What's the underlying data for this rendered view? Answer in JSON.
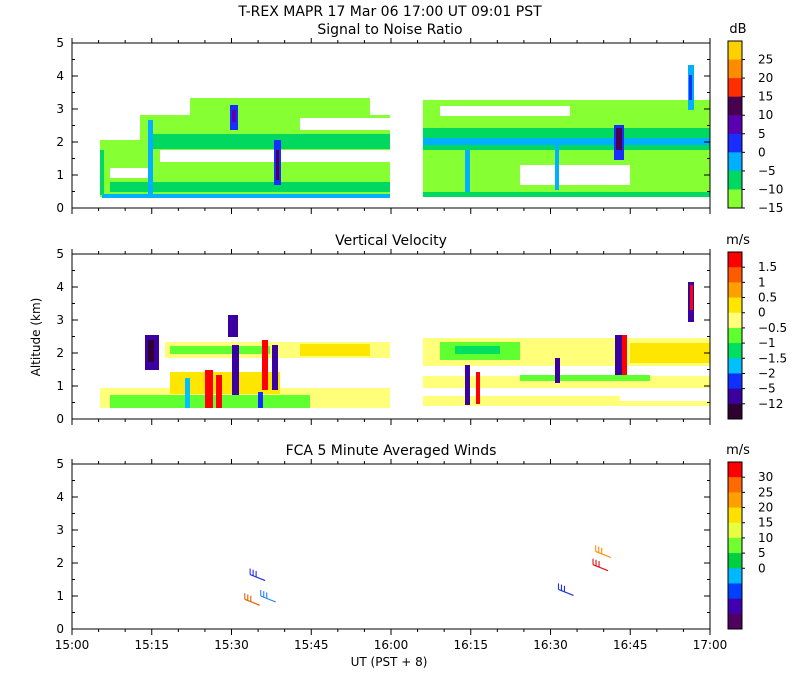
{
  "header": {
    "title": "T-REX   MAPR 17 Mar 06   17:00 UT   09:01   PST"
  },
  "colors": {
    "white": "#ffffff",
    "axis": "#000000"
  },
  "x_axis": {
    "ticks": [
      "15:00",
      "15:15",
      "15:30",
      "15:45",
      "16:00",
      "16:15",
      "16:30",
      "16:45",
      "17:00"
    ],
    "label": "UT  (PST + 8)"
  },
  "chart_data": [
    {
      "type": "heatmap",
      "title": "Signal to Noise Ratio",
      "xlabel": "UT  (PST + 8)",
      "ylabel": "",
      "xlim": [
        0,
        120
      ],
      "ylim": [
        0,
        5
      ],
      "yticks": [
        "0",
        "1",
        "2",
        "3",
        "4",
        "5"
      ],
      "colorbar_unit": "dB",
      "colorbar_labels": [
        "25",
        "20",
        "15",
        "10",
        "5",
        "0",
        "−5",
        "−10",
        "−15"
      ],
      "colorbar_colors": [
        "#ffd000",
        "#ff8c00",
        "#ff2d00",
        "#4a0050",
        "#5a00b0",
        "#1a2dff",
        "#00b0ff",
        "#00d860",
        "#86ff33"
      ],
      "data_gap": [
        60,
        66
      ]
    },
    {
      "type": "heatmap",
      "title": "Vertical Velocity",
      "xlabel": "UT  (PST + 8)",
      "ylabel": "Altitude (km)",
      "xlim": [
        0,
        120
      ],
      "ylim": [
        0,
        5
      ],
      "yticks": [
        "0",
        "1",
        "2",
        "3",
        "4",
        "5"
      ],
      "colorbar_unit": "m/s",
      "colorbar_labels": [
        "1.5",
        "1",
        "0.5",
        "0",
        "−0.5",
        "−1",
        "−1.5",
        "−2",
        "−5",
        "−12"
      ],
      "colorbar_colors": [
        "#ff0000",
        "#ff5a00",
        "#ffa000",
        "#ffe600",
        "#ffff7a",
        "#60ff30",
        "#00e060",
        "#00c0ff",
        "#1030ff",
        "#3a00a0",
        "#300030"
      ],
      "data_gap": [
        60,
        66
      ]
    },
    {
      "type": "scatter",
      "title": "FCA 5 Minute Averaged Winds",
      "xlabel": "UT  (PST + 8)",
      "ylabel": "",
      "xlim": [
        0,
        120
      ],
      "ylim": [
        0,
        5
      ],
      "yticks": [
        "0",
        "1",
        "2",
        "3",
        "4",
        "5"
      ],
      "colorbar_unit": "m/s",
      "colorbar_labels": [
        "30",
        "25",
        "20",
        "15",
        "10",
        "5",
        "0"
      ],
      "colorbar_colors": [
        "#ff0000",
        "#ff6a00",
        "#ffa000",
        "#ffe000",
        "#e6ff40",
        "#70ff30",
        "#00d040",
        "#00b8ff",
        "#0040ff",
        "#4000b0",
        "#500060"
      ],
      "barbs": [
        {
          "t": 33.5,
          "alt": 1.65,
          "color": "#2030e0"
        },
        {
          "t": 35.5,
          "alt": 1.0,
          "color": "#2080ff"
        },
        {
          "t": 32.5,
          "alt": 0.9,
          "color": "#e06000"
        },
        {
          "t": 91.5,
          "alt": 1.2,
          "color": "#2030e0"
        },
        {
          "t": 98.5,
          "alt": 2.35,
          "color": "#ff9000"
        },
        {
          "t": 98.0,
          "alt": 1.95,
          "color": "#e01010"
        }
      ]
    }
  ]
}
